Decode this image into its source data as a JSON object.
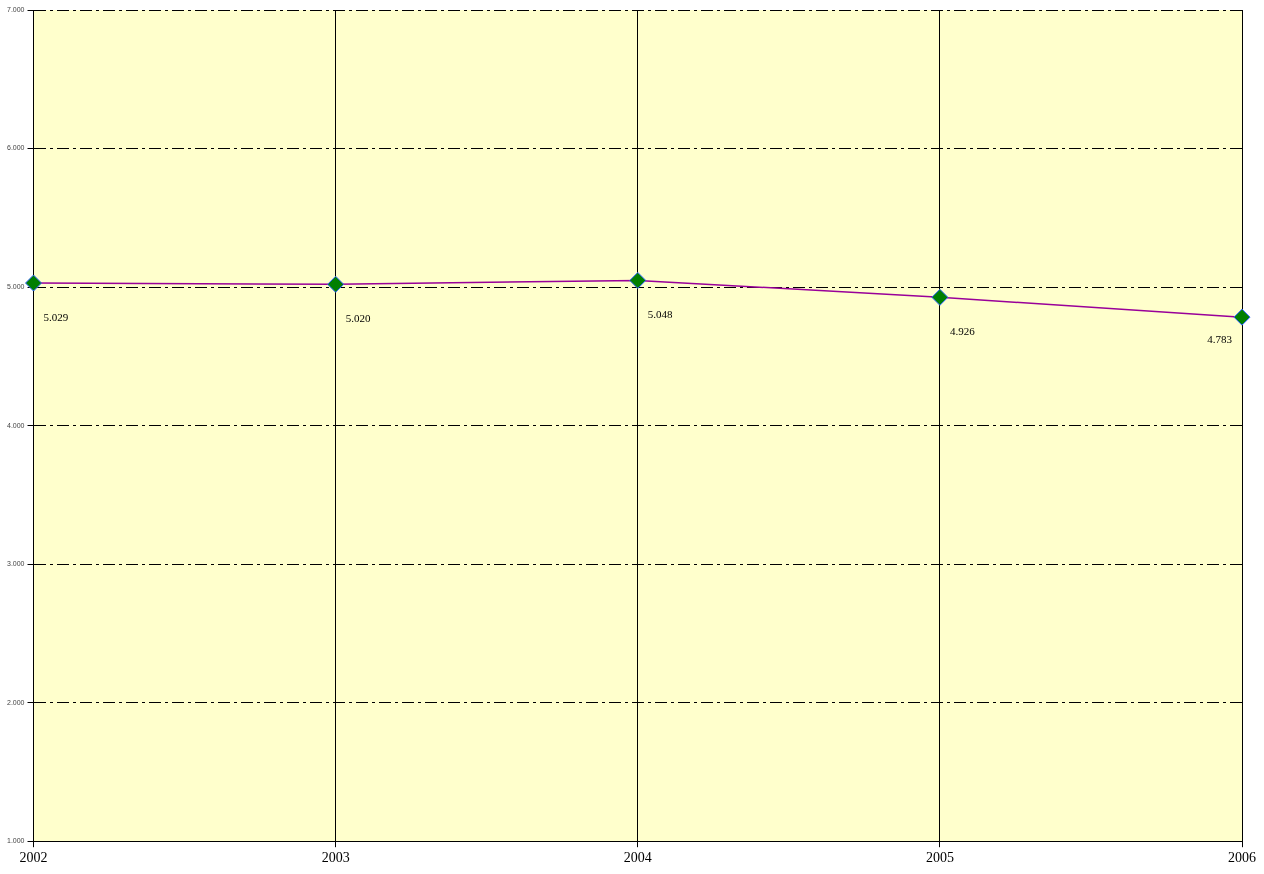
{
  "chart_data": {
    "type": "line",
    "categories": [
      "2002",
      "2003",
      "2004",
      "2005",
      "2006"
    ],
    "series": [
      {
        "color": "#990099",
        "values": [
          5.029,
          5.02,
          5.048,
          4.926,
          4.783
        ],
        "value_labels": [
          "5.029",
          "5.020",
          "5.048",
          "4.926",
          "4.783"
        ]
      }
    ],
    "ylim": [
      1,
      7
    ],
    "yticks": [
      {
        "value": 1,
        "label": "1.000"
      },
      {
        "value": 2,
        "label": "2.000"
      },
      {
        "value": 3,
        "label": "3.000"
      },
      {
        "value": 4,
        "label": "4.000"
      },
      {
        "value": 5,
        "label": "5.000"
      },
      {
        "value": 6,
        "label": "6.000"
      },
      {
        "value": 7,
        "label": "7.000"
      }
    ],
    "grid": true,
    "legend": false,
    "marker": "diamond",
    "line_style": "solid"
  }
}
